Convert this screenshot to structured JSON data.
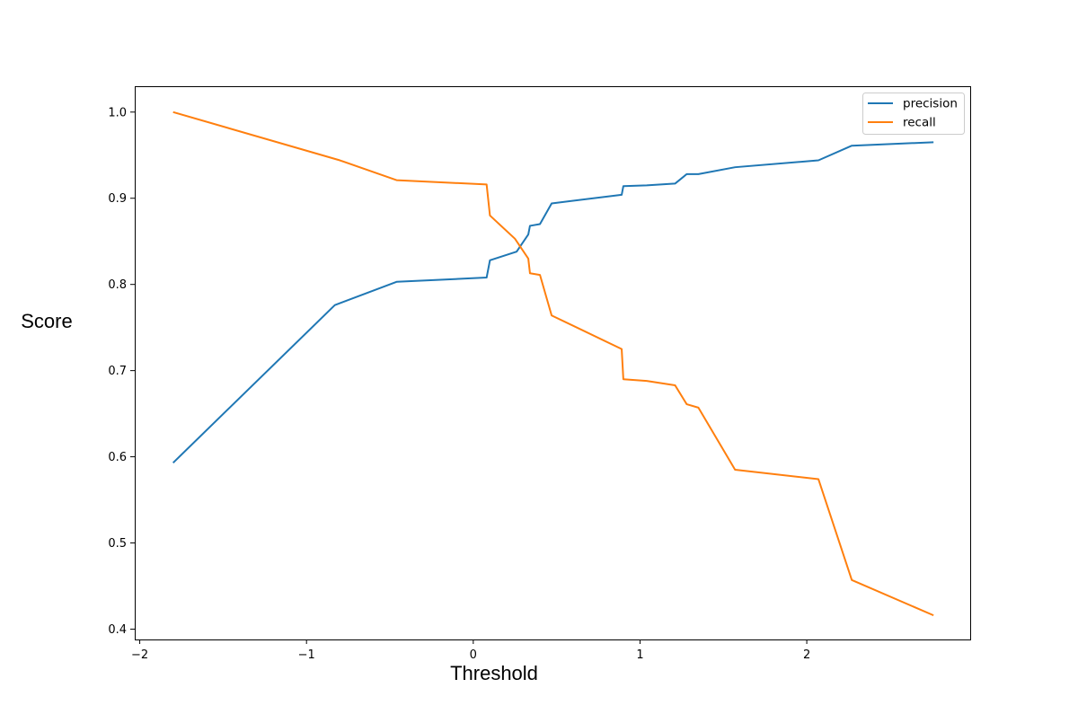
{
  "chart_data": {
    "type": "line",
    "title": "",
    "xlabel": "Threshold",
    "ylabel": "Score",
    "xlim": [
      -2.03,
      2.98
    ],
    "ylim": [
      0.388,
      1.03
    ],
    "xticks": [
      -2,
      -1,
      0,
      1,
      2
    ],
    "xtick_labels": [
      "−2",
      "−1",
      "0",
      "1",
      "2"
    ],
    "yticks": [
      0.4,
      0.5,
      0.6,
      0.7,
      0.8,
      0.9,
      1.0
    ],
    "ytick_labels": [
      "0.4",
      "0.5",
      "0.6",
      "0.7",
      "0.8",
      "0.9",
      "1.0"
    ],
    "grid": false,
    "legend_position": "top-right",
    "series": [
      {
        "name": "precision",
        "color": "#1f77b4",
        "x": [
          -1.8,
          -0.83,
          -0.46,
          0.08,
          0.1,
          0.26,
          0.33,
          0.34,
          0.4,
          0.47,
          0.89,
          0.9,
          1.04,
          1.21,
          1.28,
          1.35,
          1.57,
          2.07,
          2.27,
          2.76
        ],
        "y": [
          0.593,
          0.776,
          0.803,
          0.808,
          0.828,
          0.838,
          0.858,
          0.868,
          0.87,
          0.894,
          0.904,
          0.914,
          0.915,
          0.917,
          0.928,
          0.928,
          0.936,
          0.944,
          0.961,
          0.965
        ]
      },
      {
        "name": "recall",
        "color": "#ff7f0e",
        "x": [
          -1.8,
          -0.8,
          -0.46,
          0.08,
          0.1,
          0.25,
          0.33,
          0.34,
          0.4,
          0.47,
          0.89,
          0.9,
          1.04,
          1.21,
          1.28,
          1.35,
          1.57,
          2.07,
          2.27,
          2.76
        ],
        "y": [
          1.0,
          0.944,
          0.921,
          0.916,
          0.88,
          0.853,
          0.83,
          0.813,
          0.811,
          0.764,
          0.725,
          0.69,
          0.688,
          0.683,
          0.661,
          0.657,
          0.585,
          0.574,
          0.457,
          0.416
        ]
      }
    ]
  }
}
